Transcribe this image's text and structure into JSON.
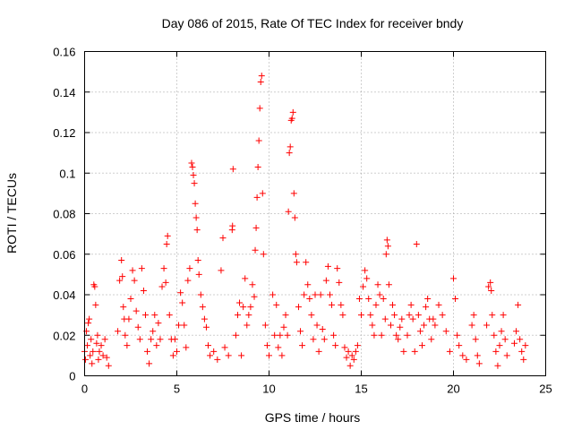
{
  "chart_data": {
    "type": "scatter",
    "title": "Day 086 of 2015, Rate Of TEC Index for receiver bndy",
    "xlabel": "GPS time / hours",
    "ylabel": "ROTI / TECUs",
    "xlim": [
      0,
      25
    ],
    "ylim": [
      0,
      0.16
    ],
    "x_ticks": [
      0,
      5,
      10,
      15,
      20,
      25
    ],
    "x_tick_labels": [
      "0",
      "5",
      "10",
      "15",
      "20",
      "25"
    ],
    "y_ticks": [
      0,
      0.02,
      0.04,
      0.06,
      0.08,
      0.1,
      0.12,
      0.14,
      0.16
    ],
    "y_tick_labels": [
      "0",
      "0.02",
      "0.04",
      "0.06",
      "0.08",
      "0.1",
      "0.12",
      "0.14",
      "0.16"
    ],
    "grid": true,
    "marker": "+",
    "color": "#ff0000",
    "series": [
      {
        "name": "ROTI",
        "points": [
          [
            0.0,
            0.012
          ],
          [
            0.05,
            0.008
          ],
          [
            0.1,
            0.022
          ],
          [
            0.15,
            0.015
          ],
          [
            0.2,
            0.026
          ],
          [
            0.25,
            0.028
          ],
          [
            0.3,
            0.01
          ],
          [
            0.35,
            0.018
          ],
          [
            0.4,
            0.006
          ],
          [
            0.45,
            0.012
          ],
          [
            0.5,
            0.045
          ],
          [
            0.55,
            0.044
          ],
          [
            0.6,
            0.035
          ],
          [
            0.65,
            0.016
          ],
          [
            0.7,
            0.02
          ],
          [
            0.75,
            0.008
          ],
          [
            0.8,
            0.012
          ],
          [
            0.9,
            0.015
          ],
          [
            1.0,
            0.01
          ],
          [
            1.1,
            0.018
          ],
          [
            1.2,
            0.009
          ],
          [
            1.3,
            0.005
          ],
          [
            1.8,
            0.022
          ],
          [
            1.9,
            0.047
          ],
          [
            2.0,
            0.057
          ],
          [
            2.05,
            0.049
          ],
          [
            2.1,
            0.034
          ],
          [
            2.15,
            0.028
          ],
          [
            2.2,
            0.02
          ],
          [
            2.3,
            0.015
          ],
          [
            2.4,
            0.028
          ],
          [
            2.5,
            0.038
          ],
          [
            2.6,
            0.052
          ],
          [
            2.7,
            0.047
          ],
          [
            2.8,
            0.032
          ],
          [
            2.9,
            0.024
          ],
          [
            3.0,
            0.018
          ],
          [
            3.1,
            0.053
          ],
          [
            3.2,
            0.042
          ],
          [
            3.3,
            0.03
          ],
          [
            3.4,
            0.012
          ],
          [
            3.5,
            0.006
          ],
          [
            3.6,
            0.018
          ],
          [
            3.7,
            0.022
          ],
          [
            3.8,
            0.03
          ],
          [
            3.9,
            0.015
          ],
          [
            4.0,
            0.026
          ],
          [
            4.1,
            0.018
          ],
          [
            4.2,
            0.044
          ],
          [
            4.3,
            0.053
          ],
          [
            4.4,
            0.046
          ],
          [
            4.45,
            0.065
          ],
          [
            4.5,
            0.069
          ],
          [
            4.6,
            0.03
          ],
          [
            4.7,
            0.018
          ],
          [
            4.8,
            0.01
          ],
          [
            4.9,
            0.018
          ],
          [
            5.0,
            0.012
          ],
          [
            5.1,
            0.025
          ],
          [
            5.2,
            0.041
          ],
          [
            5.3,
            0.036
          ],
          [
            5.4,
            0.025
          ],
          [
            5.5,
            0.014
          ],
          [
            5.6,
            0.047
          ],
          [
            5.7,
            0.053
          ],
          [
            5.8,
            0.105
          ],
          [
            5.85,
            0.103
          ],
          [
            5.9,
            0.099
          ],
          [
            5.95,
            0.095
          ],
          [
            6.0,
            0.085
          ],
          [
            6.05,
            0.078
          ],
          [
            6.1,
            0.072
          ],
          [
            6.15,
            0.057
          ],
          [
            6.2,
            0.05
          ],
          [
            6.3,
            0.04
          ],
          [
            6.4,
            0.034
          ],
          [
            6.5,
            0.028
          ],
          [
            6.6,
            0.024
          ],
          [
            6.7,
            0.015
          ],
          [
            6.8,
            0.01
          ],
          [
            7.0,
            0.012
          ],
          [
            7.2,
            0.008
          ],
          [
            7.4,
            0.052
          ],
          [
            7.5,
            0.068
          ],
          [
            7.6,
            0.014
          ],
          [
            7.8,
            0.01
          ],
          [
            8.0,
            0.072
          ],
          [
            8.02,
            0.074
          ],
          [
            8.05,
            0.102
          ],
          [
            8.2,
            0.02
          ],
          [
            8.3,
            0.03
          ],
          [
            8.4,
            0.036
          ],
          [
            8.5,
            0.01
          ],
          [
            8.6,
            0.034
          ],
          [
            8.7,
            0.048
          ],
          [
            8.8,
            0.025
          ],
          [
            8.9,
            0.03
          ],
          [
            9.0,
            0.034
          ],
          [
            9.1,
            0.045
          ],
          [
            9.2,
            0.039
          ],
          [
            9.25,
            0.062
          ],
          [
            9.3,
            0.073
          ],
          [
            9.35,
            0.088
          ],
          [
            9.4,
            0.103
          ],
          [
            9.45,
            0.116
          ],
          [
            9.5,
            0.132
          ],
          [
            9.55,
            0.145
          ],
          [
            9.6,
            0.148
          ],
          [
            9.65,
            0.09
          ],
          [
            9.7,
            0.06
          ],
          [
            9.8,
            0.025
          ],
          [
            9.9,
            0.015
          ],
          [
            10.0,
            0.01
          ],
          [
            10.2,
            0.04
          ],
          [
            10.3,
            0.02
          ],
          [
            10.4,
            0.035
          ],
          [
            10.5,
            0.014
          ],
          [
            10.6,
            0.02
          ],
          [
            10.7,
            0.01
          ],
          [
            10.8,
            0.024
          ],
          [
            10.9,
            0.03
          ],
          [
            11.0,
            0.02
          ],
          [
            11.05,
            0.081
          ],
          [
            11.1,
            0.11
          ],
          [
            11.15,
            0.113
          ],
          [
            11.2,
            0.126
          ],
          [
            11.25,
            0.127
          ],
          [
            11.3,
            0.13
          ],
          [
            11.35,
            0.09
          ],
          [
            11.4,
            0.078
          ],
          [
            11.45,
            0.06
          ],
          [
            11.5,
            0.056
          ],
          [
            11.6,
            0.034
          ],
          [
            11.7,
            0.022
          ],
          [
            11.8,
            0.015
          ],
          [
            11.9,
            0.04
          ],
          [
            12.0,
            0.056
          ],
          [
            12.1,
            0.045
          ],
          [
            12.2,
            0.038
          ],
          [
            12.3,
            0.03
          ],
          [
            12.4,
            0.018
          ],
          [
            12.5,
            0.04
          ],
          [
            12.6,
            0.025
          ],
          [
            12.7,
            0.012
          ],
          [
            12.8,
            0.04
          ],
          [
            12.9,
            0.023
          ],
          [
            13.0,
            0.018
          ],
          [
            13.1,
            0.047
          ],
          [
            13.2,
            0.054
          ],
          [
            13.3,
            0.04
          ],
          [
            13.4,
            0.035
          ],
          [
            13.5,
            0.02
          ],
          [
            13.6,
            0.015
          ],
          [
            13.7,
            0.053
          ],
          [
            13.8,
            0.046
          ],
          [
            13.9,
            0.035
          ],
          [
            14.0,
            0.03
          ],
          [
            14.1,
            0.014
          ],
          [
            14.2,
            0.009
          ],
          [
            14.3,
            0.012
          ],
          [
            14.4,
            0.005
          ],
          [
            14.5,
            0.01
          ],
          [
            14.6,
            0.008
          ],
          [
            14.7,
            0.012
          ],
          [
            14.8,
            0.015
          ],
          [
            14.9,
            0.038
          ],
          [
            15.0,
            0.03
          ],
          [
            15.1,
            0.044
          ],
          [
            15.2,
            0.052
          ],
          [
            15.3,
            0.048
          ],
          [
            15.4,
            0.038
          ],
          [
            15.5,
            0.03
          ],
          [
            15.6,
            0.025
          ],
          [
            15.7,
            0.02
          ],
          [
            15.8,
            0.035
          ],
          [
            15.9,
            0.045
          ],
          [
            16.0,
            0.04
          ],
          [
            16.1,
            0.02
          ],
          [
            16.2,
            0.038
          ],
          [
            16.3,
            0.028
          ],
          [
            16.35,
            0.06
          ],
          [
            16.4,
            0.067
          ],
          [
            16.45,
            0.064
          ],
          [
            16.5,
            0.045
          ],
          [
            16.6,
            0.025
          ],
          [
            16.7,
            0.035
          ],
          [
            16.8,
            0.03
          ],
          [
            16.9,
            0.02
          ],
          [
            17.0,
            0.018
          ],
          [
            17.1,
            0.024
          ],
          [
            17.2,
            0.028
          ],
          [
            17.3,
            0.012
          ],
          [
            17.5,
            0.02
          ],
          [
            17.6,
            0.03
          ],
          [
            17.7,
            0.035
          ],
          [
            17.8,
            0.028
          ],
          [
            17.9,
            0.012
          ],
          [
            18.0,
            0.065
          ],
          [
            18.1,
            0.03
          ],
          [
            18.2,
            0.022
          ],
          [
            18.3,
            0.015
          ],
          [
            18.4,
            0.025
          ],
          [
            18.5,
            0.034
          ],
          [
            18.6,
            0.038
          ],
          [
            18.7,
            0.028
          ],
          [
            18.8,
            0.018
          ],
          [
            18.9,
            0.028
          ],
          [
            19.0,
            0.025
          ],
          [
            19.2,
            0.035
          ],
          [
            19.4,
            0.03
          ],
          [
            19.6,
            0.022
          ],
          [
            19.8,
            0.012
          ],
          [
            20.0,
            0.048
          ],
          [
            20.1,
            0.038
          ],
          [
            20.2,
            0.02
          ],
          [
            20.3,
            0.015
          ],
          [
            20.5,
            0.01
          ],
          [
            20.7,
            0.008
          ],
          [
            21.0,
            0.025
          ],
          [
            21.1,
            0.03
          ],
          [
            21.2,
            0.018
          ],
          [
            21.3,
            0.01
          ],
          [
            21.4,
            0.006
          ],
          [
            21.8,
            0.025
          ],
          [
            21.9,
            0.044
          ],
          [
            22.0,
            0.046
          ],
          [
            22.05,
            0.042
          ],
          [
            22.1,
            0.03
          ],
          [
            22.2,
            0.02
          ],
          [
            22.3,
            0.012
          ],
          [
            22.4,
            0.005
          ],
          [
            22.5,
            0.015
          ],
          [
            22.6,
            0.022
          ],
          [
            22.7,
            0.03
          ],
          [
            22.8,
            0.018
          ],
          [
            22.9,
            0.01
          ],
          [
            23.3,
            0.016
          ],
          [
            23.4,
            0.022
          ],
          [
            23.5,
            0.035
          ],
          [
            23.6,
            0.018
          ],
          [
            23.7,
            0.012
          ],
          [
            23.8,
            0.008
          ],
          [
            23.9,
            0.015
          ]
        ]
      }
    ]
  }
}
